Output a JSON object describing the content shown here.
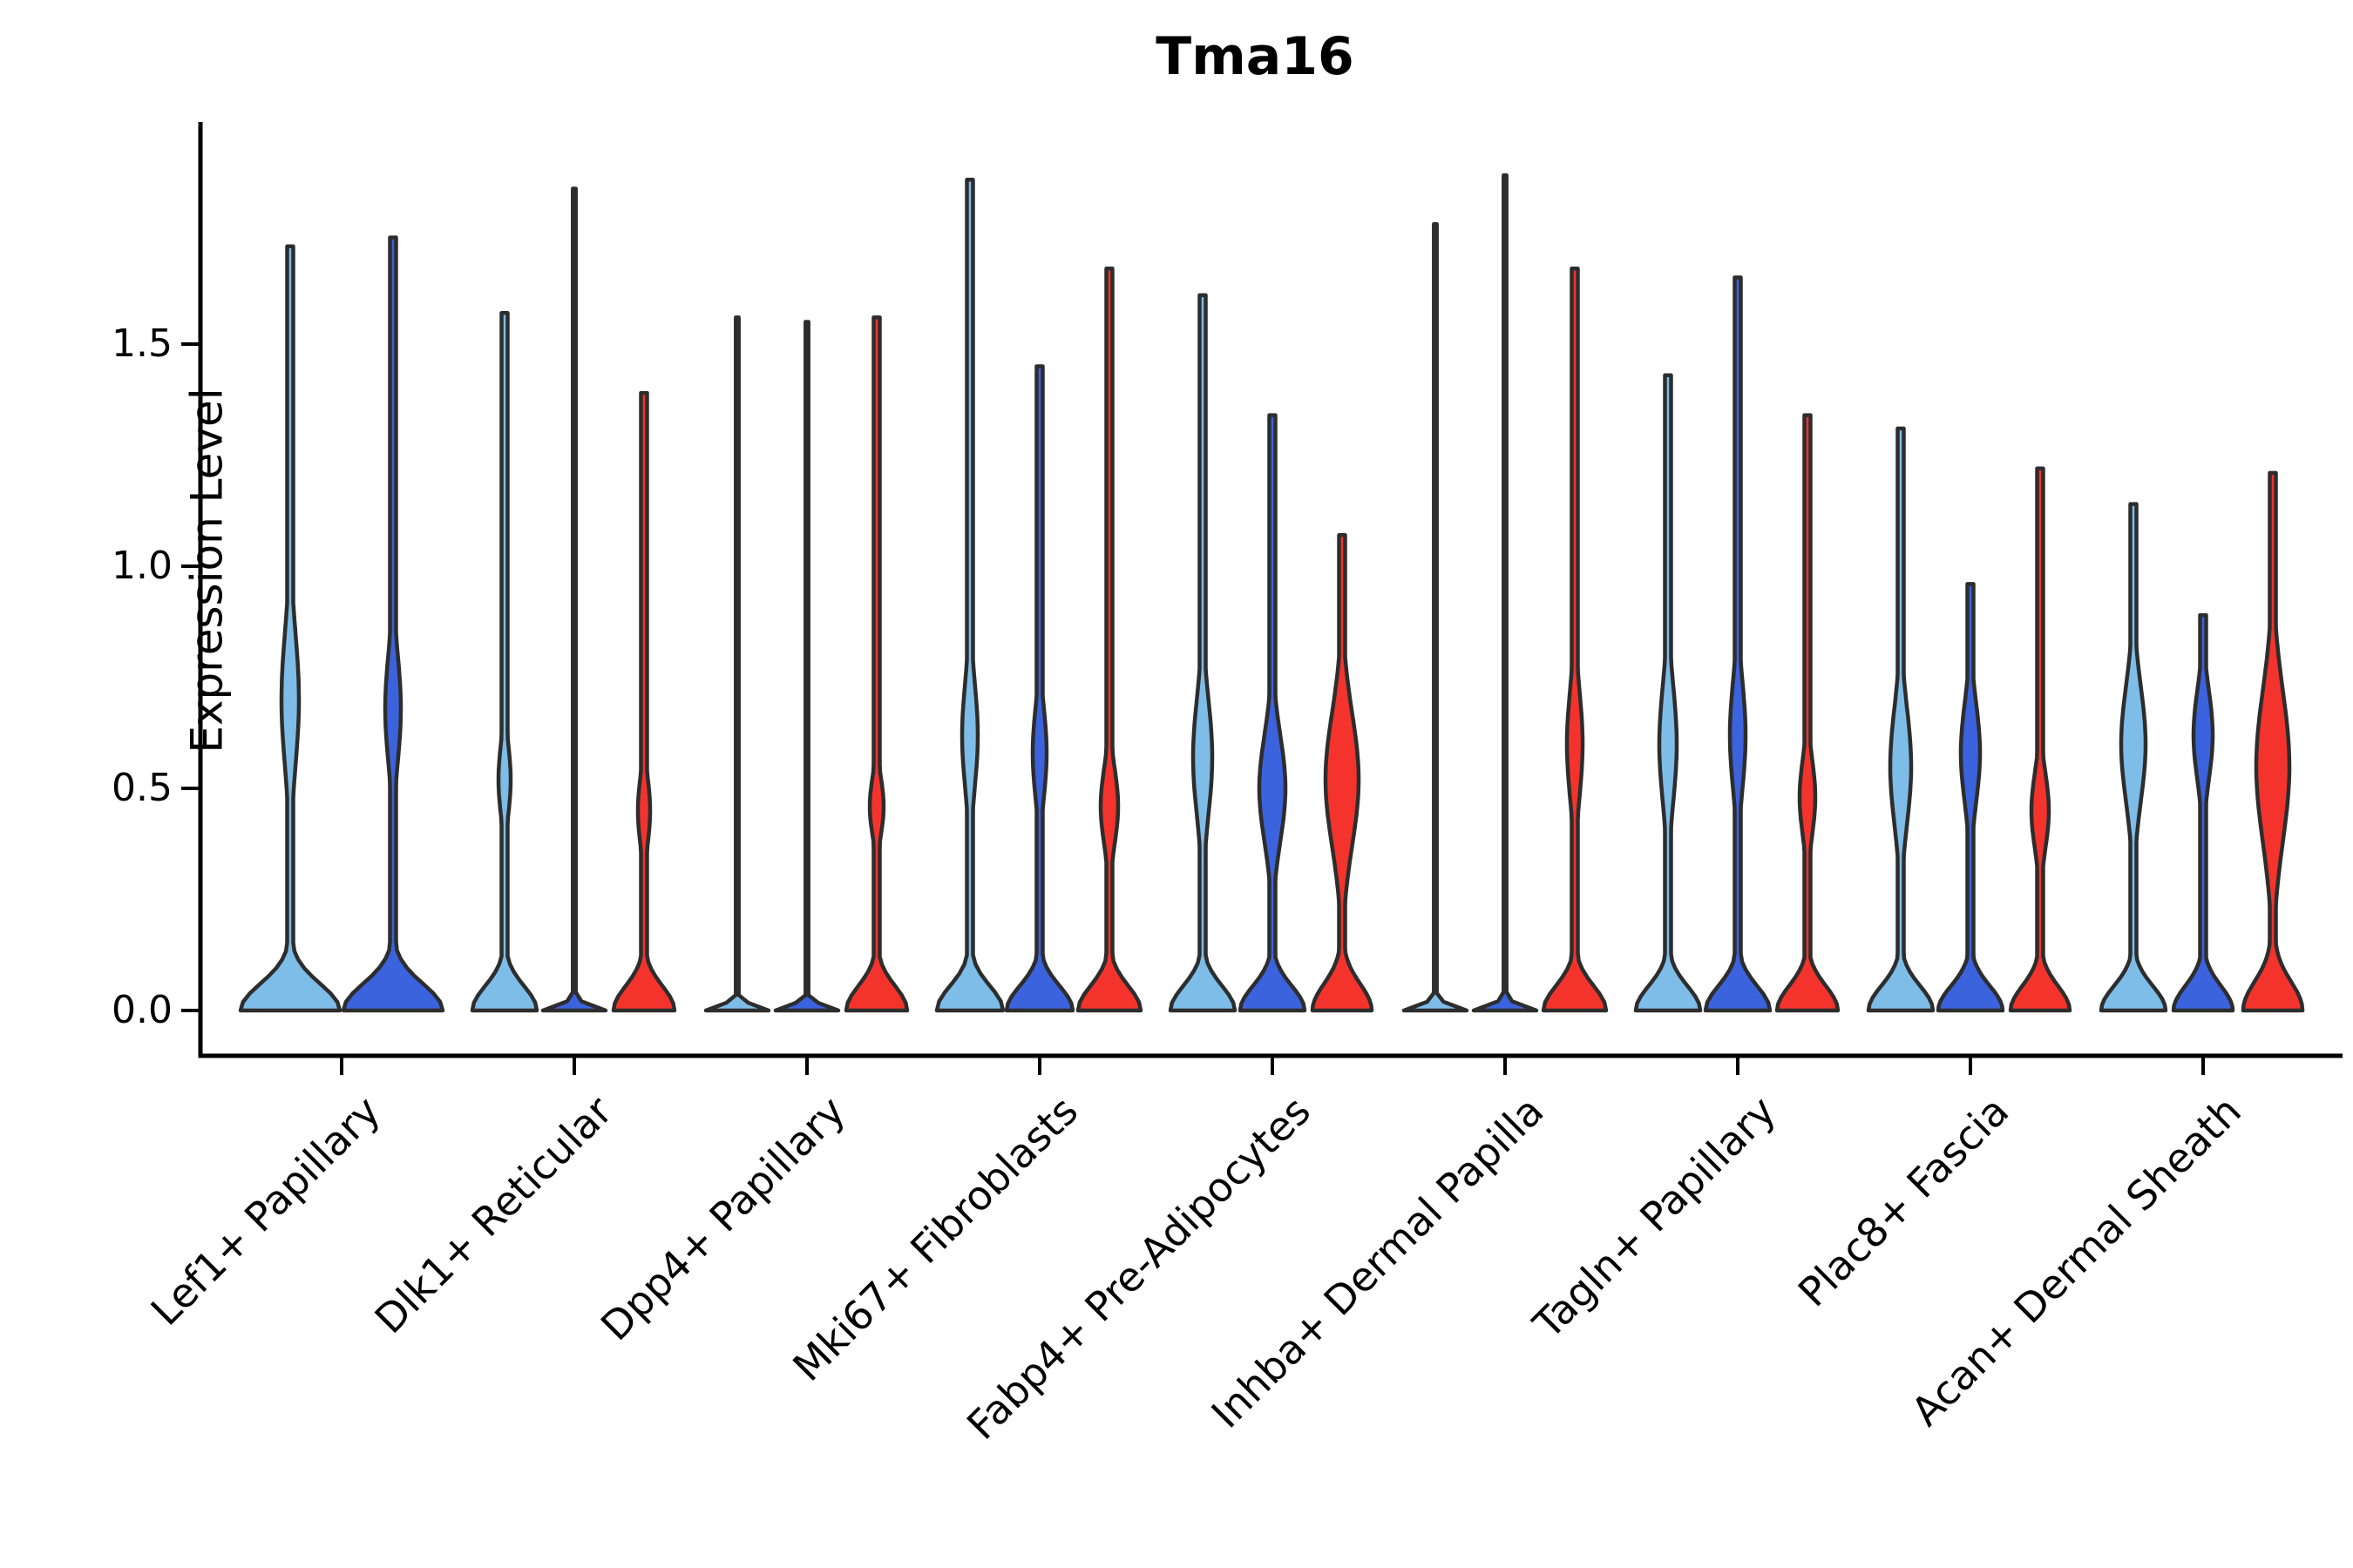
{
  "title": "Tma16",
  "y_axis": {
    "label": "Expression Level",
    "tick_labels": [
      "0.0",
      "0.5",
      "1.0",
      "1.5"
    ]
  },
  "colors": {
    "light_blue": "#7dbde8",
    "dark_blue": "#3c63de",
    "red": "#f4342c",
    "outline": "#2d2d2d",
    "axis": "#000000",
    "background": "#ffffff"
  },
  "chart_data": {
    "type": "violin",
    "title": "Tma16",
    "xlabel": "",
    "ylabel": "Expression Level",
    "ylim": [
      -0.1,
      2.0
    ],
    "yticks": [
      0.0,
      0.5,
      1.0,
      1.5
    ],
    "grid": false,
    "legend_position": "none",
    "hue_colors": {
      "light_blue": "#7dbde8",
      "dark_blue": "#3c63de",
      "red": "#f4342c"
    },
    "categories": [
      "Lef1+ Papillary",
      "Dlk1+ Reticular",
      "Dpp4+ Papillary",
      "Mki67+ Fibroblasts",
      "Fabp4+ Pre-Adipocytes",
      "Inhba+ Dermal Papilla",
      "Tagln+ Papillary",
      "Plac8+ Fascia",
      "Acan+ Dermal Sheath"
    ],
    "groups": [
      {
        "category": "Lef1+ Papillary",
        "violins": [
          {
            "hue": "light_blue",
            "max": 1.72,
            "collapsed": false,
            "base_halfwidth": 57,
            "base_sigma": 0.06,
            "bulge_center": 0.7,
            "bulge_halfwidth": 10,
            "bulge_sigma": 0.15
          },
          {
            "hue": "dark_blue",
            "max": 1.74,
            "collapsed": false,
            "base_halfwidth": 57,
            "base_sigma": 0.06,
            "bulge_center": 0.68,
            "bulge_halfwidth": 9,
            "bulge_sigma": 0.12
          }
        ]
      },
      {
        "category": "Dlk1+ Reticular",
        "violins": [
          {
            "hue": "light_blue",
            "max": 1.57,
            "collapsed": false,
            "base_halfwidth": 37,
            "base_sigma": 0.055,
            "bulge_center": 0.52,
            "bulge_halfwidth": 7,
            "bulge_sigma": 0.08
          },
          {
            "hue": "dark_blue",
            "max": 1.85,
            "collapsed": true
          },
          {
            "hue": "red",
            "max": 1.39,
            "collapsed": false,
            "base_halfwidth": 35,
            "base_sigma": 0.055,
            "bulge_center": 0.45,
            "bulge_halfwidth": 7,
            "bulge_sigma": 0.075
          }
        ]
      },
      {
        "category": "Dpp4+ Papillary",
        "violins": [
          {
            "hue": "light_blue",
            "max": 1.56,
            "collapsed": true
          },
          {
            "hue": "dark_blue",
            "max": 1.55,
            "collapsed": true
          },
          {
            "hue": "red",
            "max": 1.56,
            "collapsed": false,
            "base_halfwidth": 35,
            "base_sigma": 0.055,
            "bulge_center": 0.46,
            "bulge_halfwidth": 8,
            "bulge_sigma": 0.065
          }
        ]
      },
      {
        "category": "Mki67+ Fibroblasts",
        "violins": [
          {
            "hue": "light_blue",
            "max": 1.87,
            "collapsed": false,
            "base_halfwidth": 38,
            "base_sigma": 0.055,
            "bulge_center": 0.62,
            "bulge_halfwidth": 9,
            "bulge_sigma": 0.12
          },
          {
            "hue": "dark_blue",
            "max": 1.45,
            "collapsed": false,
            "base_halfwidth": 38,
            "base_sigma": 0.055,
            "bulge_center": 0.58,
            "bulge_halfwidth": 8,
            "bulge_sigma": 0.1
          },
          {
            "hue": "red",
            "max": 1.67,
            "collapsed": false,
            "base_halfwidth": 36,
            "base_sigma": 0.055,
            "bulge_center": 0.46,
            "bulge_halfwidth": 10,
            "bulge_sigma": 0.085
          }
        ]
      },
      {
        "category": "Fabp4+ Pre-Adipocytes",
        "violins": [
          {
            "hue": "light_blue",
            "max": 1.61,
            "collapsed": false,
            "base_halfwidth": 37,
            "base_sigma": 0.055,
            "bulge_center": 0.57,
            "bulge_halfwidth": 11,
            "bulge_sigma": 0.13
          },
          {
            "hue": "dark_blue",
            "max": 1.34,
            "collapsed": false,
            "base_halfwidth": 37,
            "base_sigma": 0.055,
            "bulge_center": 0.5,
            "bulge_halfwidth": 15,
            "bulge_sigma": 0.12
          },
          {
            "hue": "red",
            "max": 1.07,
            "collapsed": false,
            "base_halfwidth": 34,
            "base_sigma": 0.06,
            "bulge_center": 0.52,
            "bulge_halfwidth": 19,
            "bulge_sigma": 0.15
          }
        ]
      },
      {
        "category": "Inhba+ Dermal Papilla",
        "violins": [
          {
            "hue": "light_blue",
            "max": 1.77,
            "collapsed": true
          },
          {
            "hue": "dark_blue",
            "max": 1.88,
            "collapsed": true
          },
          {
            "hue": "red",
            "max": 1.67,
            "collapsed": false,
            "base_halfwidth": 36,
            "base_sigma": 0.055,
            "bulge_center": 0.6,
            "bulge_halfwidth": 9,
            "bulge_sigma": 0.12
          }
        ]
      },
      {
        "category": "Tagln+ Papillary",
        "violins": [
          {
            "hue": "light_blue",
            "max": 1.43,
            "collapsed": false,
            "base_halfwidth": 37,
            "base_sigma": 0.055,
            "bulge_center": 0.6,
            "bulge_halfwidth": 10,
            "bulge_sigma": 0.13
          },
          {
            "hue": "dark_blue",
            "max": 1.65,
            "collapsed": false,
            "base_halfwidth": 37,
            "base_sigma": 0.055,
            "bulge_center": 0.62,
            "bulge_halfwidth": 9,
            "bulge_sigma": 0.12
          },
          {
            "hue": "red",
            "max": 1.34,
            "collapsed": false,
            "base_halfwidth": 35,
            "base_sigma": 0.055,
            "bulge_center": 0.48,
            "bulge_halfwidth": 9,
            "bulge_sigma": 0.085
          }
        ]
      },
      {
        "category": "Plac8+ Fascia",
        "violins": [
          {
            "hue": "light_blue",
            "max": 1.31,
            "collapsed": false,
            "base_halfwidth": 37,
            "base_sigma": 0.055,
            "bulge_center": 0.55,
            "bulge_halfwidth": 12,
            "bulge_sigma": 0.13
          },
          {
            "hue": "dark_blue",
            "max": 0.96,
            "collapsed": false,
            "base_halfwidth": 37,
            "base_sigma": 0.055,
            "bulge_center": 0.58,
            "bulge_halfwidth": 11,
            "bulge_sigma": 0.11
          },
          {
            "hue": "red",
            "max": 1.22,
            "collapsed": false,
            "base_halfwidth": 34,
            "base_sigma": 0.055,
            "bulge_center": 0.45,
            "bulge_halfwidth": 10,
            "bulge_sigma": 0.085
          }
        ]
      },
      {
        "category": "Acan+ Dermal Sheath",
        "violins": [
          {
            "hue": "light_blue",
            "max": 1.14,
            "collapsed": false,
            "base_halfwidth": 37,
            "base_sigma": 0.055,
            "bulge_center": 0.6,
            "bulge_halfwidth": 14,
            "bulge_sigma": 0.13
          },
          {
            "hue": "dark_blue",
            "max": 0.89,
            "collapsed": false,
            "base_halfwidth": 34,
            "base_sigma": 0.055,
            "bulge_center": 0.62,
            "bulge_halfwidth": 11,
            "bulge_sigma": 0.1
          },
          {
            "hue": "red",
            "max": 1.21,
            "collapsed": false,
            "base_halfwidth": 34,
            "base_sigma": 0.065,
            "bulge_center": 0.55,
            "bulge_halfwidth": 19,
            "bulge_sigma": 0.17
          }
        ]
      }
    ]
  }
}
